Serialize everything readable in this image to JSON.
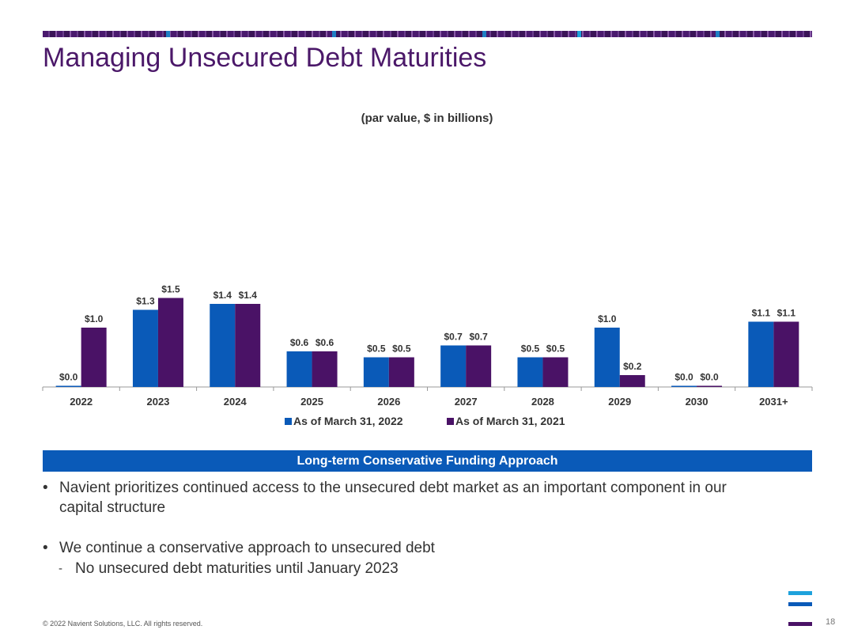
{
  "slide": {
    "title": "Managing Unsecured Debt Maturities",
    "page_number": "18",
    "footer": "© 2022 Navient Solutions, LLC. All rights reserved."
  },
  "chart_data": {
    "type": "bar",
    "title": "(par value, $ in billions)",
    "categories": [
      "2022",
      "2023",
      "2024",
      "2025",
      "2026",
      "2027",
      "2028",
      "2029",
      "2030",
      "2031+"
    ],
    "series": [
      {
        "name": "As of March 31, 2022",
        "color": "#0a5ab8",
        "values": [
          0.0,
          1.3,
          1.4,
          0.6,
          0.5,
          0.7,
          0.5,
          1.0,
          0.0,
          1.1
        ],
        "labels": [
          "$0.0",
          "$1.3",
          "$1.4",
          "$0.6",
          "$0.5",
          "$0.7",
          "$0.5",
          "$1.0",
          "$0.0",
          "$1.1"
        ]
      },
      {
        "name": "As of March 31, 2021",
        "color": "#4a1266",
        "values": [
          1.0,
          1.5,
          1.4,
          0.6,
          0.5,
          0.7,
          0.5,
          0.2,
          0.0,
          1.1
        ],
        "labels": [
          "$1.0",
          "$1.5",
          "$1.4",
          "$0.6",
          "$0.5",
          "$0.7",
          "$0.5",
          "$0.2",
          "$0.0",
          "$1.1"
        ]
      }
    ],
    "ylim": [
      0,
      1.5
    ],
    "grid": false,
    "legend": "bottom"
  },
  "banner": {
    "text": "Long-term Conservative Funding Approach"
  },
  "bullets": [
    {
      "lines": [
        "Navient prioritizes continued access to the unsecured debt market as an important component in our",
        "capital structure"
      ]
    },
    {
      "lines": [
        "We continue a conservative approach to unsecured debt"
      ],
      "sub": "No unsecured debt maturities until January 2023"
    }
  ],
  "colors": {
    "title": "#4b1869",
    "banner": "#0a5ab8",
    "logo": [
      "#1ea2dc",
      "#0a5ab8",
      "#4a1266"
    ]
  }
}
